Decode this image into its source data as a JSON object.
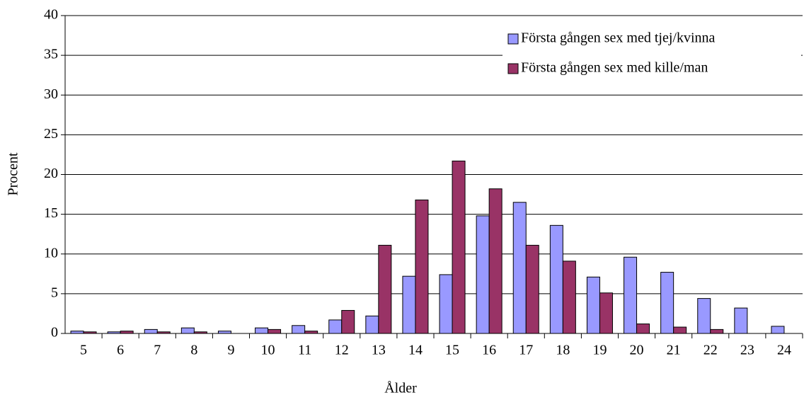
{
  "chart_data": {
    "type": "bar",
    "x_label": "Ålder",
    "y_label": "Procent",
    "categories": [
      "5",
      "6",
      "7",
      "8",
      "9",
      "10",
      "11",
      "12",
      "13",
      "14",
      "15",
      "16",
      "17",
      "18",
      "19",
      "20",
      "21",
      "22",
      "23",
      "24"
    ],
    "series": [
      {
        "name": "Första gången sex med tjej/kvinna",
        "color": "#9999ff",
        "values": [
          0.3,
          0.2,
          0.5,
          0.7,
          0.3,
          0.7,
          1.0,
          1.7,
          2.2,
          7.2,
          7.4,
          14.8,
          16.5,
          13.6,
          7.1,
          9.6,
          7.7,
          4.4,
          3.2,
          0.9
        ]
      },
      {
        "name": "Första gången sex med kille/man",
        "color": "#993366",
        "values": [
          0.2,
          0.3,
          0.2,
          0.2,
          0,
          0.5,
          0.3,
          2.9,
          11.1,
          16.8,
          21.7,
          18.2,
          11.1,
          9.1,
          5.1,
          1.2,
          0.8,
          0.5,
          0,
          0
        ]
      }
    ],
    "ylim": [
      0,
      40
    ],
    "yticks": [
      0,
      5,
      10,
      15,
      20,
      25,
      30,
      35,
      40
    ],
    "grid": true,
    "legend": "top-right"
  }
}
